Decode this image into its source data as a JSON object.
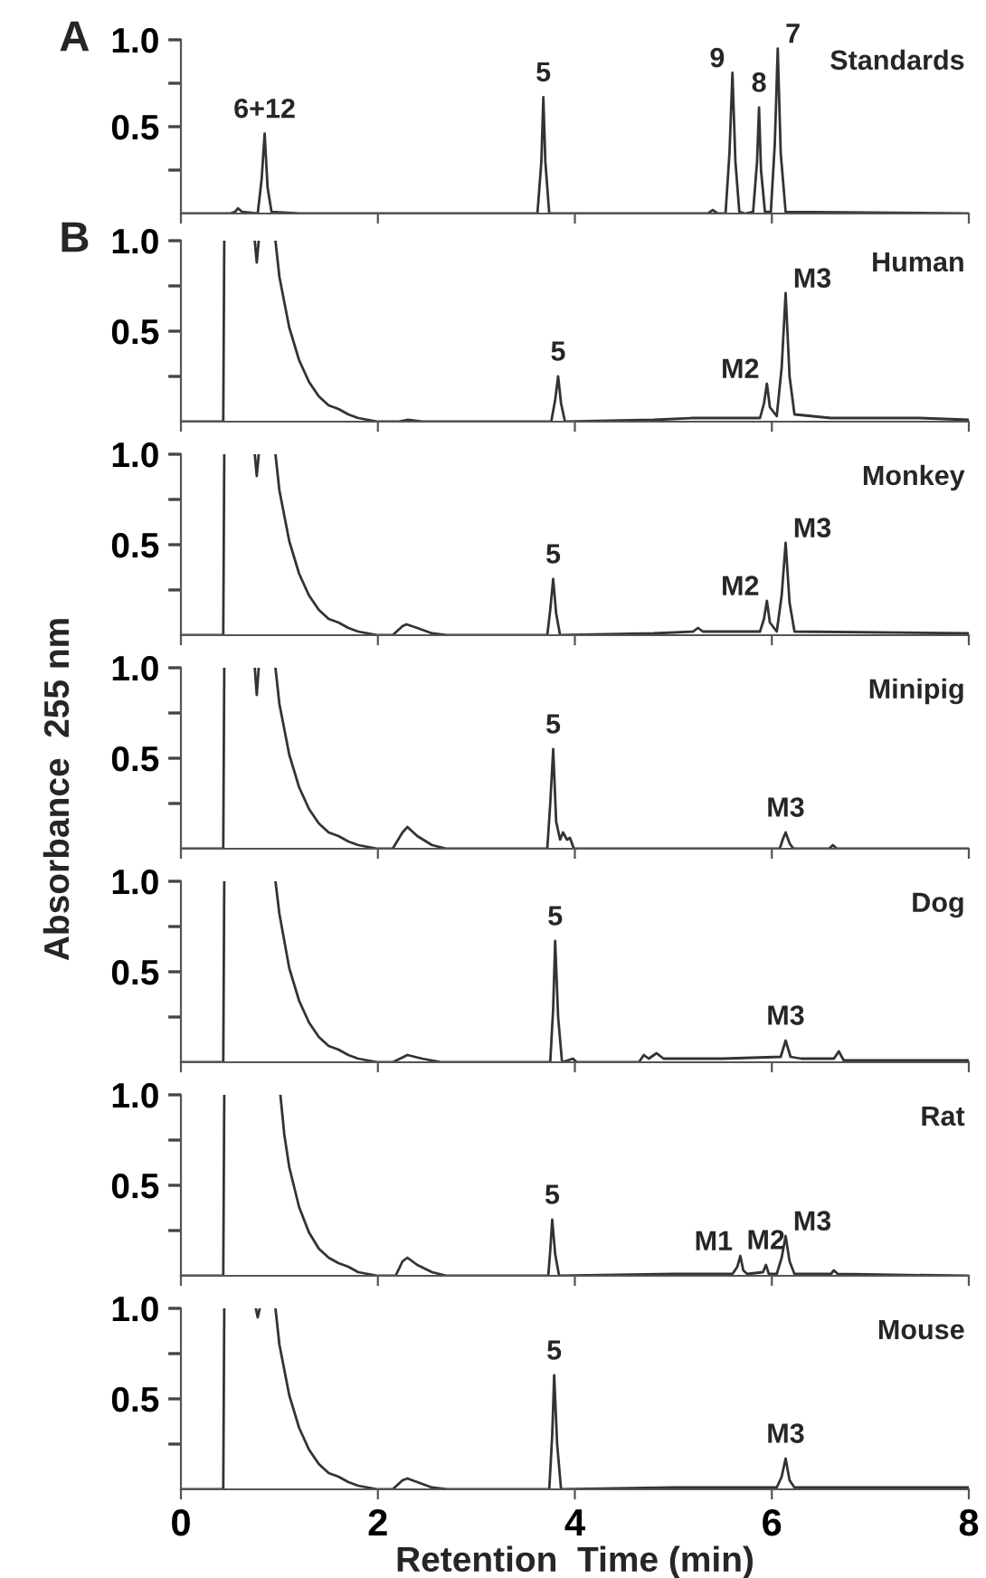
{
  "chart_data": [
    {
      "type": "line",
      "title": "Standards",
      "color": "#333333",
      "annotations": [
        "A",
        {
          "text": "6+12",
          "x": 0.85,
          "y": 0.46
        },
        {
          "text": "5",
          "x": 3.68,
          "y": 0.67
        },
        {
          "text": "9",
          "x": 5.6,
          "y": 0.81
        },
        {
          "text": "8",
          "x": 5.87,
          "y": 0.61
        },
        {
          "text": "7",
          "x": 6.06,
          "y": 0.95
        }
      ],
      "xlim": [
        0,
        8
      ],
      "xticks": [
        0,
        2,
        4,
        6,
        8
      ],
      "ylim": [
        0,
        1.0
      ],
      "yticks": [
        {
          "value": 0.25,
          "label": null
        },
        {
          "value": 0.5,
          "label": "0.5"
        },
        {
          "value": 0.75,
          "label": null
        },
        {
          "value": 1.0,
          "label": "1.0"
        }
      ],
      "tick_labels": "y",
      "x": [
        0,
        0.5,
        0.55,
        0.58,
        0.62,
        0.78,
        0.82,
        0.85,
        0.88,
        0.92,
        1.2,
        3.62,
        3.66,
        3.68,
        3.7,
        3.74,
        5.35,
        5.4,
        5.45,
        5.53,
        5.57,
        5.6,
        5.63,
        5.67,
        5.73,
        5.81,
        5.85,
        5.87,
        5.89,
        5.93,
        5.99,
        6.03,
        6.06,
        6.09,
        6.14,
        8
      ],
      "values": [
        0,
        0,
        0.01,
        0.03,
        0.01,
        0,
        0.2,
        0.46,
        0.15,
        0.01,
        0,
        0,
        0.3,
        0.67,
        0.3,
        0,
        0,
        0.02,
        0,
        0,
        0.35,
        0.81,
        0.3,
        0.01,
        0,
        0.01,
        0.3,
        0.61,
        0.25,
        0.01,
        0.01,
        0.4,
        0.95,
        0.35,
        0.01,
        0
      ]
    },
    {
      "type": "line",
      "title": "Human",
      "color": "#333333",
      "annotations": [
        "B",
        {
          "text": "5",
          "x": 3.83,
          "y": 0.25
        },
        {
          "text": "M2",
          "x": 5.95,
          "y": 0.21
        },
        {
          "text": "M3",
          "x": 6.14,
          "y": 0.71
        }
      ],
      "xlim": [
        0,
        8
      ],
      "xticks": [
        0,
        2,
        4,
        6,
        8
      ],
      "ylim": [
        0,
        1.0
      ],
      "yticks": [
        {
          "value": 0.25,
          "label": null
        },
        {
          "value": 0.5,
          "label": "0.5"
        },
        {
          "value": 0.75,
          "label": null
        },
        {
          "value": 1.0,
          "label": "1.0"
        }
      ],
      "tick_labels": "y",
      "x": [
        0,
        0.43,
        0.44,
        0.45,
        0.75,
        0.77,
        0.79,
        0.85,
        0.96,
        1.0,
        1.1,
        1.2,
        1.3,
        1.4,
        1.5,
        1.6,
        1.7,
        1.8,
        1.9,
        2.0,
        2.2,
        2.3,
        2.45,
        3.76,
        3.8,
        3.83,
        3.86,
        3.9,
        4.8,
        5.2,
        5.5,
        5.88,
        5.92,
        5.95,
        5.98,
        6.05,
        6.1,
        6.14,
        6.18,
        6.23,
        6.6,
        7.5,
        8
      ],
      "values": [
        0,
        0,
        1.0,
        null,
        1.0,
        0.88,
        1.0,
        null,
        1.0,
        0.8,
        0.52,
        0.34,
        0.22,
        0.14,
        0.09,
        0.07,
        0.04,
        0.02,
        0.01,
        0,
        0,
        0.01,
        0,
        0,
        0.12,
        0.25,
        0.1,
        0,
        0.01,
        0.02,
        0.02,
        0.02,
        0.1,
        0.21,
        0.08,
        0.03,
        0.3,
        0.71,
        0.25,
        0.04,
        0.02,
        0.02,
        0.01
      ]
    },
    {
      "type": "line",
      "title": "Monkey",
      "color": "#333333",
      "annotations": [
        {
          "text": "5",
          "x": 3.78,
          "y": 0.31
        },
        {
          "text": "M2",
          "x": 5.95,
          "y": 0.19
        },
        {
          "text": "M3",
          "x": 6.14,
          "y": 0.51
        }
      ],
      "xlim": [
        0,
        8
      ],
      "xticks": [
        0,
        2,
        4,
        6,
        8
      ],
      "ylim": [
        0,
        1.0
      ],
      "yticks": [
        {
          "value": 0.25,
          "label": null
        },
        {
          "value": 0.5,
          "label": "0.5"
        },
        {
          "value": 0.75,
          "label": null
        },
        {
          "value": 1.0,
          "label": "1.0"
        }
      ],
      "tick_labels": "y",
      "x": [
        0,
        0.43,
        0.44,
        0.45,
        0.75,
        0.77,
        0.79,
        0.85,
        0.96,
        1.0,
        1.1,
        1.2,
        1.3,
        1.4,
        1.5,
        1.6,
        1.7,
        1.8,
        1.9,
        2.0,
        2.15,
        2.25,
        2.29,
        2.4,
        2.55,
        2.7,
        3.72,
        3.75,
        3.78,
        3.81,
        3.85,
        4.8,
        5.2,
        5.25,
        5.3,
        5.88,
        5.92,
        5.95,
        5.98,
        6.05,
        6.1,
        6.14,
        6.18,
        6.23,
        8
      ],
      "values": [
        0,
        0,
        1.0,
        null,
        1.0,
        0.88,
        1.0,
        null,
        1.0,
        0.8,
        0.52,
        0.34,
        0.22,
        0.14,
        0.09,
        0.07,
        0.04,
        0.02,
        0.01,
        0,
        0,
        0.05,
        0.06,
        0.04,
        0.01,
        0,
        0,
        0.14,
        0.31,
        0.12,
        0,
        0.01,
        0.02,
        0.04,
        0.02,
        0.02,
        0.09,
        0.19,
        0.07,
        0.02,
        0.22,
        0.51,
        0.18,
        0.02,
        0.01
      ]
    },
    {
      "type": "line",
      "title": "Minipig",
      "color": "#333333",
      "ylabel": "Absorbance  255 nm",
      "annotations": [
        {
          "text": "5",
          "x": 3.78,
          "y": 0.55
        },
        {
          "text": "M3",
          "x": 6.14,
          "y": 0.09
        }
      ],
      "xlim": [
        0,
        8
      ],
      "xticks": [
        0,
        2,
        4,
        6,
        8
      ],
      "ylim": [
        0,
        1.0
      ],
      "yticks": [
        {
          "value": 0.25,
          "label": null
        },
        {
          "value": 0.5,
          "label": "0.5"
        },
        {
          "value": 0.75,
          "label": null
        },
        {
          "value": 1.0,
          "label": "1.0"
        }
      ],
      "tick_labels": "y",
      "x": [
        0,
        0.43,
        0.44,
        0.45,
        0.75,
        0.77,
        0.79,
        0.85,
        0.96,
        1.0,
        1.1,
        1.2,
        1.3,
        1.4,
        1.5,
        1.6,
        1.7,
        1.8,
        1.9,
        2.0,
        2.15,
        2.25,
        2.3,
        2.4,
        2.55,
        2.7,
        3.72,
        3.75,
        3.78,
        3.81,
        3.85,
        3.88,
        3.92,
        3.95,
        3.99,
        6.08,
        6.11,
        6.14,
        6.18,
        6.22,
        6.58,
        6.62,
        6.66,
        8
      ],
      "values": [
        0,
        0,
        1.0,
        null,
        1.0,
        0.85,
        1.0,
        null,
        1.0,
        0.8,
        0.52,
        0.34,
        0.22,
        0.14,
        0.09,
        0.07,
        0.04,
        0.02,
        0.01,
        0,
        0,
        0.09,
        0.12,
        0.07,
        0.02,
        0,
        0,
        0.25,
        0.55,
        0.15,
        0.05,
        0.09,
        0.05,
        0.06,
        0,
        0,
        0.05,
        0.09,
        0.03,
        0,
        0,
        0.02,
        0,
        0
      ]
    },
    {
      "type": "line",
      "title": "Dog",
      "color": "#333333",
      "annotations": [
        {
          "text": "5",
          "x": 3.8,
          "y": 0.67
        },
        {
          "text": "M3",
          "x": 6.14,
          "y": 0.12
        }
      ],
      "xlim": [
        0,
        8
      ],
      "xticks": [
        0,
        2,
        4,
        6,
        8
      ],
      "ylim": [
        0,
        1.0
      ],
      "yticks": [
        {
          "value": 0.25,
          "label": null
        },
        {
          "value": 0.5,
          "label": "0.5"
        },
        {
          "value": 0.75,
          "label": null
        },
        {
          "value": 1.0,
          "label": "1.0"
        }
      ],
      "tick_labels": "y",
      "x": [
        0,
        0.43,
        0.44,
        0.45,
        0.96,
        1.0,
        1.1,
        1.2,
        1.3,
        1.4,
        1.5,
        1.6,
        1.7,
        1.8,
        1.9,
        2.0,
        2.15,
        2.3,
        2.45,
        2.65,
        3.75,
        3.78,
        3.8,
        3.83,
        3.87,
        3.98,
        4.02,
        4.65,
        4.7,
        4.75,
        4.83,
        4.9,
        5.5,
        6.09,
        6.14,
        6.19,
        6.3,
        6.63,
        6.68,
        6.73,
        8
      ],
      "values": [
        0,
        0,
        1.0,
        null,
        1.0,
        0.82,
        0.52,
        0.34,
        0.22,
        0.14,
        0.09,
        0.07,
        0.04,
        0.02,
        0.01,
        0,
        0,
        0.04,
        0.02,
        0,
        0,
        0.3,
        0.67,
        0.25,
        0,
        0.02,
        0,
        0,
        0.04,
        0.02,
        0.05,
        0.02,
        0.02,
        0.03,
        0.12,
        0.03,
        0.02,
        0.02,
        0.06,
        0.01,
        0.01
      ]
    },
    {
      "type": "line",
      "title": "Rat",
      "color": "#333333",
      "annotations": [
        {
          "text": "5",
          "x": 3.77,
          "y": 0.31
        },
        {
          "text": "M1",
          "x": 5.68,
          "y": 0.11
        },
        {
          "text": "M2",
          "x": 5.94,
          "y": 0.06
        },
        {
          "text": "M3",
          "x": 6.14,
          "y": 0.22
        }
      ],
      "xlim": [
        0,
        8
      ],
      "xticks": [
        0,
        2,
        4,
        6,
        8
      ],
      "ylim": [
        0,
        1.0
      ],
      "yticks": [
        {
          "value": 0.25,
          "label": null
        },
        {
          "value": 0.5,
          "label": "0.5"
        },
        {
          "value": 0.75,
          "label": null
        },
        {
          "value": 1.0,
          "label": "1.0"
        }
      ],
      "tick_labels": "y",
      "x": [
        0,
        0.43,
        0.44,
        0.45,
        1.01,
        1.05,
        1.1,
        1.2,
        1.3,
        1.4,
        1.5,
        1.6,
        1.7,
        1.8,
        1.9,
        2.0,
        2.18,
        2.25,
        2.3,
        2.4,
        2.55,
        2.7,
        3.73,
        3.75,
        3.77,
        3.8,
        3.84,
        5.0,
        5.6,
        5.65,
        5.68,
        5.71,
        5.75,
        5.91,
        5.94,
        5.97,
        6.05,
        6.1,
        6.14,
        6.18,
        6.23,
        6.6,
        6.63,
        6.67,
        8
      ],
      "values": [
        0,
        0,
        1.0,
        null,
        1.0,
        0.78,
        0.6,
        0.38,
        0.24,
        0.15,
        0.1,
        0.07,
        0.05,
        0.02,
        0.01,
        0,
        0,
        0.08,
        0.1,
        0.06,
        0.02,
        0,
        0,
        0.14,
        0.31,
        0.12,
        0,
        0.01,
        0.01,
        0.05,
        0.11,
        0.03,
        0.01,
        0.02,
        0.06,
        0.01,
        0.01,
        0.1,
        0.22,
        0.08,
        0.01,
        0.01,
        0.03,
        0.01,
        0
      ]
    },
    {
      "type": "line",
      "title": "Mouse",
      "color": "#333333",
      "xlabel": "Retention  Time (min)",
      "annotations": [
        {
          "text": "5",
          "x": 3.79,
          "y": 0.63
        },
        {
          "text": "M3",
          "x": 6.14,
          "y": 0.17
        }
      ],
      "xlim": [
        0,
        8
      ],
      "xticks": [
        0,
        2,
        4,
        6,
        8
      ],
      "ylim": [
        0,
        1.0
      ],
      "yticks": [
        {
          "value": 0.25,
          "label": null
        },
        {
          "value": 0.5,
          "label": "0.5"
        },
        {
          "value": 0.75,
          "label": null
        },
        {
          "value": 1.0,
          "label": "1.0"
        }
      ],
      "x": [
        0,
        0.43,
        0.44,
        0.45,
        0.76,
        0.78,
        0.8,
        0.85,
        0.96,
        1.0,
        1.1,
        1.2,
        1.3,
        1.4,
        1.5,
        1.6,
        1.7,
        1.8,
        1.9,
        2.0,
        2.15,
        2.25,
        2.3,
        2.4,
        2.55,
        2.7,
        3.74,
        3.77,
        3.79,
        3.82,
        3.86,
        5.0,
        6.05,
        6.1,
        6.14,
        6.18,
        6.23,
        8
      ],
      "values": [
        0,
        0,
        1.0,
        null,
        1.0,
        0.95,
        1.0,
        null,
        1.0,
        0.8,
        0.52,
        0.34,
        0.22,
        0.14,
        0.09,
        0.07,
        0.04,
        0.02,
        0.01,
        0,
        0,
        0.05,
        0.06,
        0.04,
        0.01,
        0,
        0,
        0.3,
        0.63,
        0.25,
        0,
        0.01,
        0.01,
        0.07,
        0.17,
        0.05,
        0.01,
        0.01
      ]
    }
  ]
}
